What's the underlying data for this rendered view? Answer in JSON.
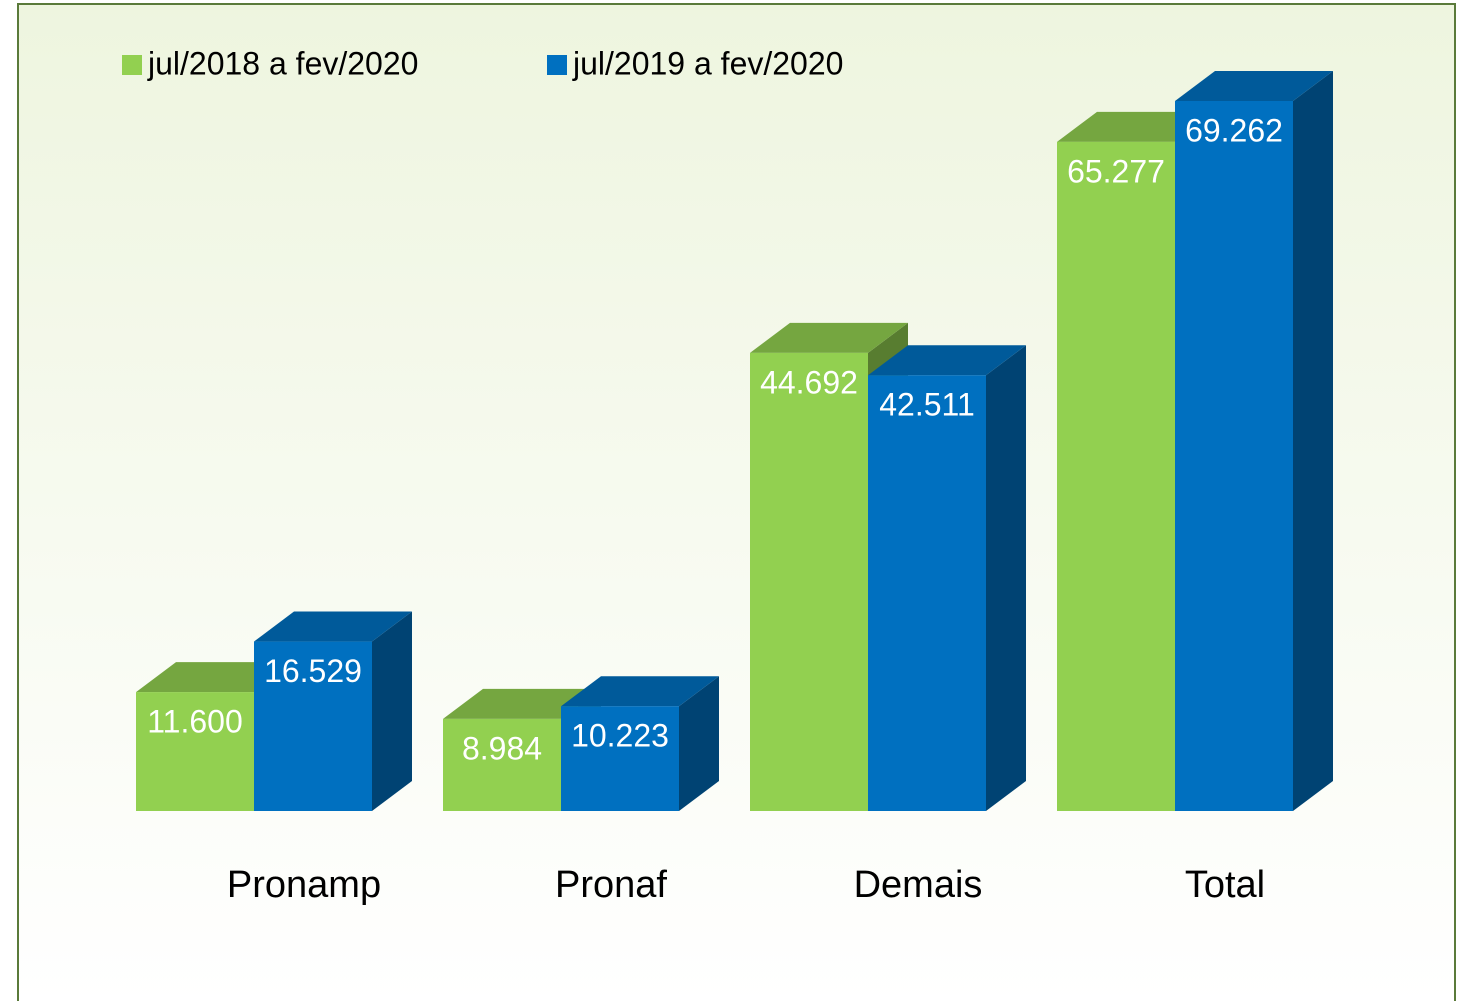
{
  "chart_data": {
    "type": "bar3d",
    "categories": [
      "Pronamp",
      "Pronaf",
      "Demais",
      "Total"
    ],
    "series": [
      {
        "name": "jul/2018 a fev/2020",
        "color": "#92d050",
        "values": [
          11600,
          8984,
          44692,
          65277
        ],
        "value_labels": [
          "11.600",
          "8.984",
          "44.692",
          "65.277"
        ]
      },
      {
        "name": "jul/2019 a fev/2020",
        "color": "#0070c0",
        "values": [
          16529,
          10223,
          42511,
          69262
        ],
        "value_labels": [
          "16.529",
          "10.223",
          "42.511",
          "69.262"
        ]
      }
    ],
    "legend": "top-left"
  }
}
